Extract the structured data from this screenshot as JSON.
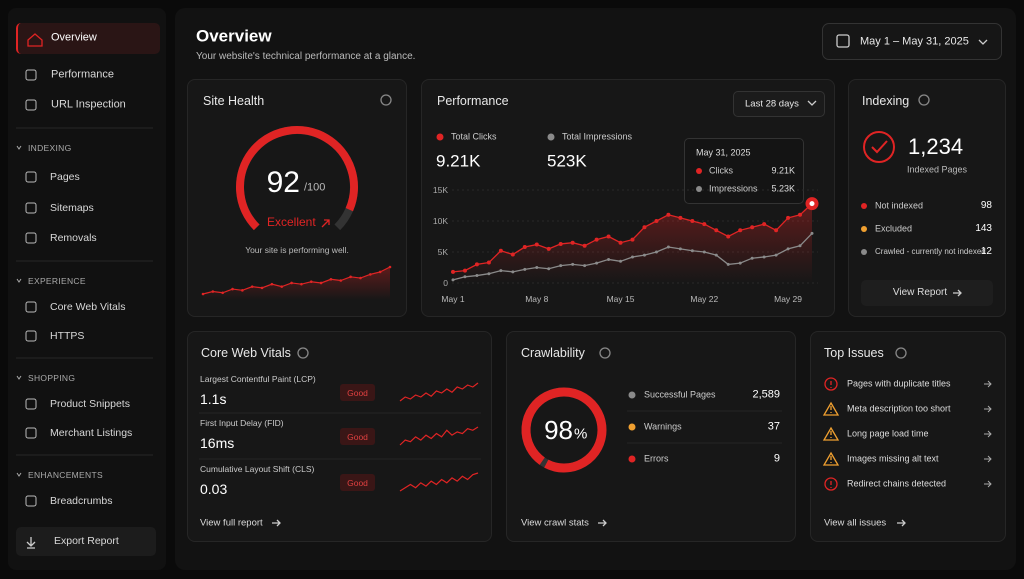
{
  "sidebar": {
    "nav": [
      "Overview",
      "Performance",
      "URL Inspection"
    ],
    "sections": [
      {
        "title": "INDEXING",
        "items": [
          "Pages",
          "Sitemaps",
          "Removals"
        ]
      },
      {
        "title": "EXPERIENCE",
        "items": [
          "Core Web Vitals",
          "HTTPS"
        ]
      },
      {
        "title": "SHOPPING",
        "items": [
          "Product Snippets",
          "Merchant Listings"
        ]
      },
      {
        "title": "ENHANCEMENTS",
        "items": [
          "Breadcrumbs"
        ]
      }
    ],
    "export": "Export Report"
  },
  "header": {
    "title": "Overview",
    "subtitle": "Your website's technical performance at a glance.",
    "date_range": "May 1 – May 31, 2025"
  },
  "site_health": {
    "title": "Site Health",
    "score": 92,
    "max": 100,
    "max_label": "/100",
    "status": "Excellent",
    "message": "Your site is performing well.",
    "trend": [
      3,
      4,
      3.5,
      5,
      4.5,
      6,
      5.5,
      7,
      6,
      7.5,
      7,
      8,
      7.5,
      9,
      8.5,
      10,
      9.5,
      11,
      12,
      14
    ]
  },
  "performance": {
    "title": "Performance",
    "range": "Last 28 days",
    "totals": [
      "9.21K",
      "523K"
    ],
    "tooltip": {
      "date": "May 31, 2025",
      "rows": [
        {
          "name": "Clicks",
          "value": "9.21K"
        },
        {
          "name": "Impressions",
          "value": "5.23K"
        }
      ]
    }
  },
  "chart_data": {
    "type": "line",
    "categories": [
      "May 1",
      null,
      null,
      null,
      null,
      null,
      null,
      "May 8",
      null,
      null,
      null,
      null,
      null,
      null,
      "May 15",
      null,
      null,
      null,
      null,
      null,
      null,
      "May 22",
      null,
      null,
      null,
      null,
      null,
      null,
      "May 29",
      null,
      null
    ],
    "series": [
      {
        "name": "Total Clicks",
        "color": "#e02424",
        "values": [
          1800,
          2000,
          3000,
          3300,
          5200,
          4600,
          5800,
          6200,
          5500,
          6300,
          6500,
          6000,
          7000,
          7500,
          6500,
          7000,
          9000,
          10000,
          11000,
          10500,
          10000,
          9500,
          8500,
          7500,
          8500,
          9000,
          9500,
          8500,
          10500,
          11000,
          12800
        ]
      },
      {
        "name": "Total Impressions",
        "color": "#8a8a8a",
        "values": [
          500,
          1000,
          1200,
          1500,
          2000,
          1800,
          2200,
          2500,
          2300,
          2800,
          3000,
          2800,
          3200,
          3800,
          3500,
          4200,
          4500,
          5000,
          5800,
          5500,
          5200,
          5000,
          4500,
          3000,
          3200,
          4000,
          4200,
          4500,
          5500,
          6000,
          8000
        ]
      }
    ],
    "ylim": [
      0,
      15000
    ],
    "yticks": [
      0,
      {
        "value": 5000,
        "label": "5K"
      },
      {
        "value": 10000,
        "label": "10K"
      },
      {
        "value": 15000,
        "label": "15K"
      }
    ],
    "grid": true
  },
  "indexing": {
    "title": "Indexing",
    "count": "1,234",
    "count_label": "Indexed Pages",
    "rows": [
      {
        "name": "Not indexed",
        "value": 98,
        "color": "#e02424"
      },
      {
        "name": "Excluded",
        "value": 143,
        "color": "#f0a030"
      },
      {
        "name": "Crawled - currently not indexed",
        "value": 12,
        "color": "#8a8a8a"
      }
    ],
    "button": "View Report"
  },
  "core_web_vitals": {
    "title": "Core Web Vitals",
    "rows": [
      {
        "name": "Largest Contentful Paint (LCP)",
        "value": "1.1s",
        "status": "Good",
        "trend": [
          3,
          4,
          3.5,
          4.5,
          4,
          5,
          4.2,
          5.5,
          5,
          6,
          5.2,
          6.5,
          6,
          7,
          6.5,
          7.5
        ]
      },
      {
        "name": "First Input Delay (FID)",
        "value": "16ms",
        "status": "Good",
        "trend": [
          2,
          3.5,
          3,
          4.5,
          3.5,
          5,
          4,
          5.5,
          4.5,
          6.5,
          5,
          6,
          5.5,
          7,
          6.5,
          7.5
        ]
      },
      {
        "name": "Cumulative Layout Shift (CLS)",
        "value": "0.03",
        "status": "Good",
        "trend": [
          2,
          3,
          4,
          3,
          4.5,
          3.5,
          5,
          4,
          5.5,
          4.5,
          6,
          5,
          6.5,
          5.5,
          7,
          7.5
        ]
      }
    ],
    "link": "View full report"
  },
  "crawlability": {
    "title": "Crawlability",
    "percent": 98,
    "unit": "%",
    "rows": [
      {
        "name": "Successful Pages",
        "value": "2,589",
        "color": "#8a8a8a"
      },
      {
        "name": "Warnings",
        "value": 37,
        "color": "#f0a030"
      },
      {
        "name": "Errors",
        "value": 9,
        "color": "#e02424"
      }
    ],
    "link": "View crawl stats"
  },
  "top_issues": {
    "title": "Top Issues",
    "items": [
      {
        "text": "Pages with duplicate titles",
        "icon": "circle",
        "color": "#e02424"
      },
      {
        "text": "Meta description too short",
        "icon": "triangle",
        "color": "#f0a030"
      },
      {
        "text": "Long page load time",
        "icon": "triangle",
        "color": "#f0a030"
      },
      {
        "text": "Images missing alt text",
        "icon": "triangle",
        "color": "#f0a030"
      },
      {
        "text": "Redirect chains detected",
        "icon": "circle",
        "color": "#e02424"
      }
    ],
    "link": "View all issues"
  }
}
